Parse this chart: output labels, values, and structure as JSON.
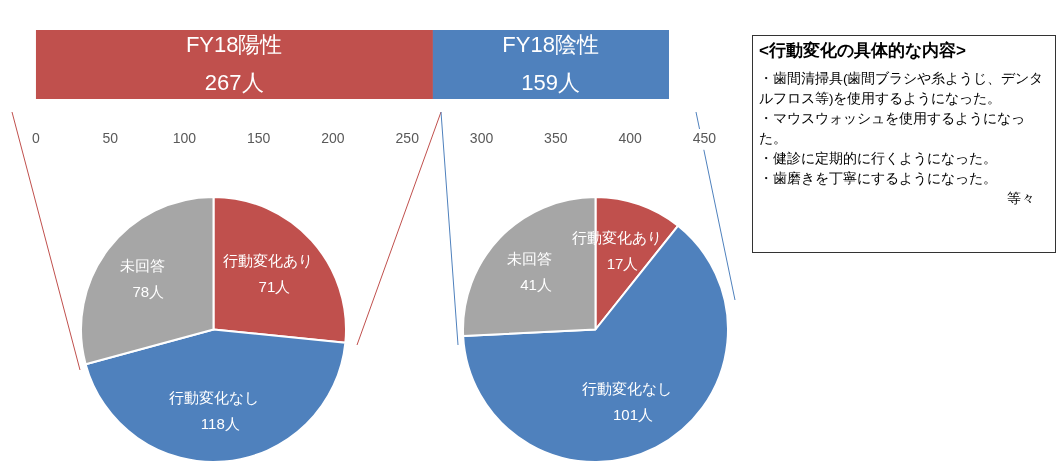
{
  "chart_data": [
    {
      "type": "bar",
      "orientation": "horizontal",
      "stacked": true,
      "categories": [
        null
      ],
      "series": [
        {
          "name": "FY18陽性",
          "color": "#c0504d",
          "values": [
            267
          ],
          "value_labels": [
            "267人"
          ]
        },
        {
          "name": "FY18陰性",
          "color": "#4f81bd",
          "values": [
            159
          ],
          "value_labels": [
            "159人"
          ]
        }
      ],
      "xlim": [
        0,
        450
      ],
      "xticks": [
        0,
        50,
        100,
        150,
        200,
        250,
        300,
        350,
        400,
        450
      ],
      "grid": false,
      "legend": false
    },
    {
      "type": "pie",
      "categories": [
        "行動変化あり",
        "行動変化なし",
        "未回答"
      ],
      "values": [
        71,
        118,
        78
      ],
      "value_labels": [
        "71人",
        "118人",
        "78人"
      ],
      "colors": [
        "#c0504d",
        "#4f81bd",
        "#a6a6a6"
      ],
      "legend": false
    },
    {
      "type": "pie",
      "categories": [
        "行動変化あり",
        "行動変化なし",
        "未回答"
      ],
      "values": [
        17,
        101,
        41
      ],
      "value_labels": [
        "17人",
        "101人",
        "41人"
      ],
      "colors": [
        "#c0504d",
        "#4f81bd",
        "#a6a6a6"
      ],
      "legend": false
    },
    {
      "type": "other",
      "title": "<行動変化の具体的な内容>",
      "annotations": [
        "・歯間清掃具(歯間ブラシや糸ようじ、デンタルフロス等)を使用するようになった。",
        "・マウスウォッシュを使用するようになった。",
        "・健診に定期的に行くようになった。",
        "・歯磨きを丁寧にするようになった。",
        "等々"
      ]
    }
  ]
}
